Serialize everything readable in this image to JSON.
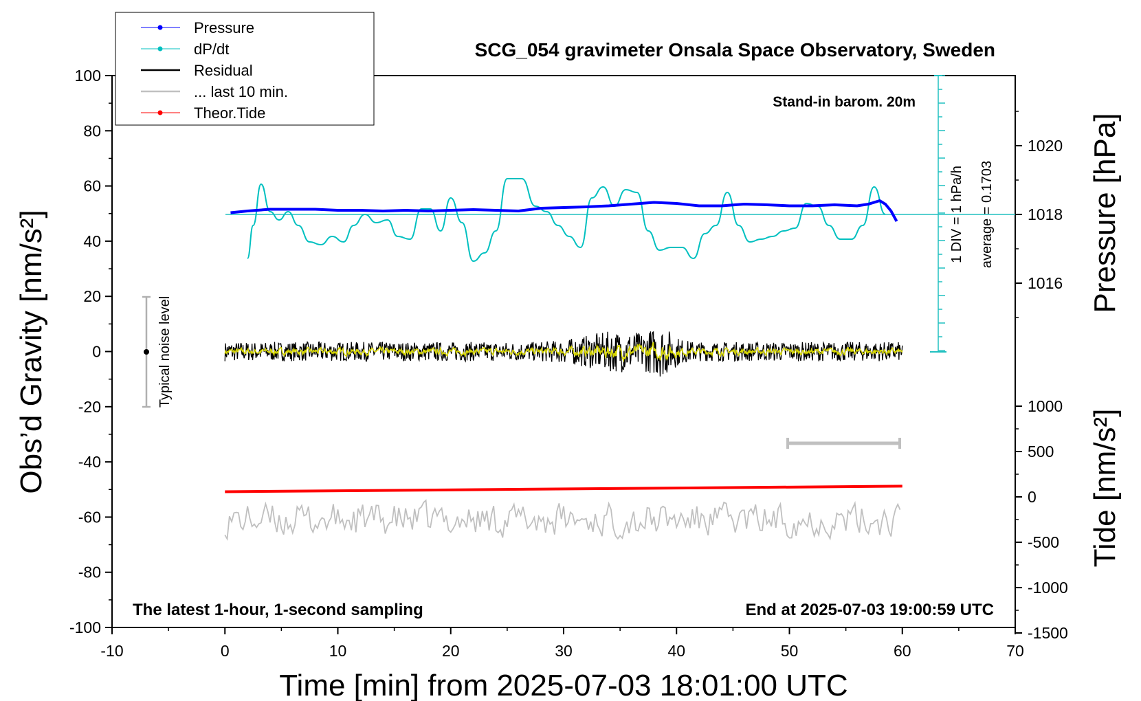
{
  "chart_data": {
    "type": "line",
    "title": "SCG_054 gravimeter Onsala Space Observatory, Sweden",
    "xlabel": "Time [min] from 2025-07-03 18:01:00 UTC",
    "ylabel_left": "Obs’d Gravity [nm/s²]",
    "ylabel_right_top": "Pressure [hPa]",
    "ylabel_right_bottom": "Tide [nm/s²]",
    "xlim": [
      -10,
      70
    ],
    "ylim_left": [
      -100,
      100
    ],
    "x_ticks": [
      "-10",
      "0",
      "10",
      "20",
      "30",
      "40",
      "50",
      "60",
      "70"
    ],
    "y_ticks_left": [
      "100",
      "80",
      "60",
      "40",
      "20",
      "0",
      "-20",
      "-40",
      "-60",
      "-80",
      "-100"
    ],
    "pressure_ticks": [
      "1020",
      "1018",
      "1016"
    ],
    "tide_ticks": [
      "1000",
      "500",
      "0",
      "-500",
      "-1000",
      "-1500"
    ],
    "annotations": {
      "barometer": "Stand-in barom. 20m",
      "scale": "1 DIV = 1 hPa/h",
      "average": "average = 0.1703",
      "noise": "Typical noise level",
      "sampling": "The latest 1-hour, 1-second sampling",
      "end": "End at 2025-07-03 19:00:59 UTC"
    },
    "legend": [
      "Pressure",
      "dP/dt",
      "Residual",
      "... last 10 min.",
      "Theor.Tide"
    ],
    "series": [
      {
        "name": "Pressure",
        "color": "#0000ff",
        "x": [
          0.5,
          2,
          4,
          6,
          8,
          10,
          12,
          14,
          16,
          18,
          20,
          22,
          24,
          26,
          28,
          30,
          32,
          34,
          36,
          38,
          40,
          42,
          44,
          46,
          48,
          50,
          52,
          54,
          56,
          57,
          58,
          58.5,
          59,
          59.5
        ],
        "y": [
          1018.05,
          1018.1,
          1018.15,
          1018.15,
          1018.15,
          1018.12,
          1018.12,
          1018.1,
          1018.12,
          1018.1,
          1018.12,
          1018.14,
          1018.12,
          1018.1,
          1018.18,
          1018.2,
          1018.22,
          1018.25,
          1018.3,
          1018.35,
          1018.32,
          1018.25,
          1018.25,
          1018.3,
          1018.28,
          1018.25,
          1018.25,
          1018.28,
          1018.25,
          1018.3,
          1018.4,
          1018.3,
          1018.1,
          1017.8
        ]
      },
      {
        "name": "dP/dt",
        "color": "#00c0c0",
        "x": [
          2,
          2.5,
          3.2,
          4,
          4.8,
          5.6,
          6.5,
          7.5,
          8.5,
          9.5,
          10.5,
          11.4,
          12.4,
          13.4,
          14.4,
          15.3,
          16.4,
          17.4,
          18.2,
          19.1,
          20.0,
          21.0,
          22.0,
          23.0,
          24.0,
          25.0,
          26.3,
          27.5,
          28.5,
          29.5,
          30.5,
          31.5,
          32.5,
          33.5,
          34.5,
          35.5,
          36.5,
          37.5,
          38.5,
          39.5,
          40.5,
          41.5,
          42.5,
          43.5,
          44.5,
          45.5,
          46.5,
          47.5,
          48.5,
          49.5,
          50.5,
          51.5,
          52.5,
          53.5,
          54.5,
          55.5,
          56.5,
          57.5,
          58.5
        ],
        "y": [
          -8.0,
          -2.0,
          5.5,
          0.5,
          -1.0,
          0.5,
          -2.0,
          -5.0,
          -5.5,
          -4.0,
          -5.0,
          -2.0,
          0.0,
          -1.5,
          -1.0,
          -4.0,
          -4.5,
          1.0,
          1.0,
          -3.0,
          3.0,
          -1.5,
          -8.5,
          -7.0,
          -3.0,
          6.5,
          6.5,
          1.5,
          0.5,
          -2.0,
          -4.0,
          -6.0,
          3.0,
          5.0,
          1.5,
          4.5,
          4.0,
          -3.0,
          -6.5,
          -6.0,
          -6.0,
          -8.0,
          -3.5,
          -2.0,
          4.0,
          -2.0,
          -5.0,
          -4.5,
          -4.0,
          -3.0,
          -2.5,
          2.0,
          1.5,
          -2.0,
          -4.5,
          -4.5,
          -2.0,
          5.0,
          0.0
        ]
      },
      {
        "name": "Residual",
        "color": "#000000",
        "x": [
          0,
          10,
          20,
          25,
          30,
          33,
          35,
          37,
          38.5,
          40,
          45,
          50,
          55,
          60
        ],
        "y": [
          0,
          0,
          0,
          0,
          0,
          0,
          0,
          0,
          0,
          0,
          0,
          0,
          0,
          0
        ]
      },
      {
        "name": "... last 10 min.",
        "color": "#c0c0c0",
        "x": [
          50,
          60
        ],
        "y": [
          -33,
          -33
        ]
      },
      {
        "name": "Theor.Tide",
        "color": "#ff0000",
        "x": [
          0,
          60
        ],
        "y": [
          -50.8,
          -48.8
        ]
      }
    ]
  }
}
